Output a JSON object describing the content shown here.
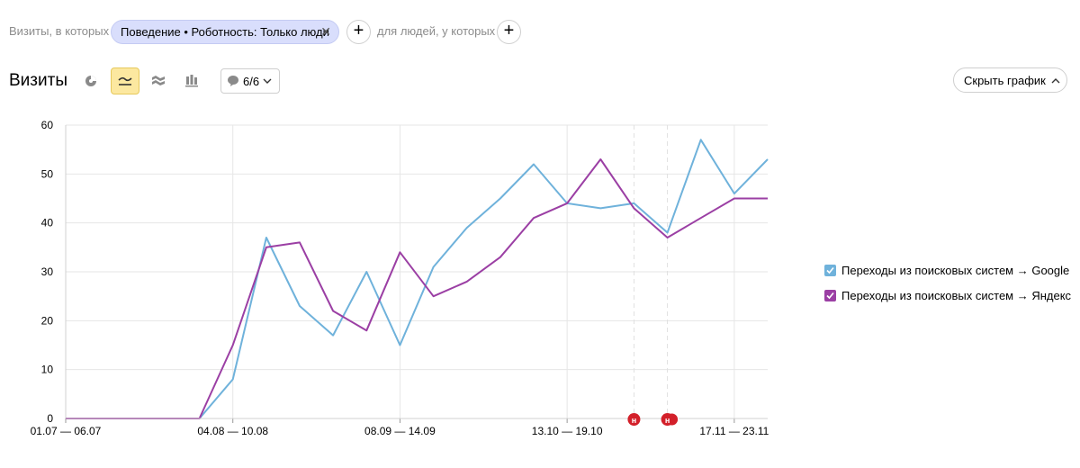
{
  "filter": {
    "prefix_label": "Визиты, в которых",
    "chip_label": "Поведение • Роботность: Только люди",
    "middle_label": "для людей, у которых",
    "add_glyph": "+"
  },
  "header": {
    "title": "Визиты",
    "notes_count": "6/6",
    "hide_chart_label": "Скрыть график"
  },
  "chart_data": {
    "type": "line",
    "ylim": [
      0,
      60
    ],
    "yticks": [
      "0",
      "10",
      "20",
      "30",
      "40",
      "50",
      "60"
    ],
    "x_tick_labels": [
      {
        "index": 0,
        "label": "01.07 — 06.07"
      },
      {
        "index": 5,
        "label": "04.08 — 10.08"
      },
      {
        "index": 10,
        "label": "08.09 — 14.09"
      },
      {
        "index": 15,
        "label": "13.10 — 19.10"
      },
      {
        "index": 20,
        "label": "17.11 — 23.11"
      }
    ],
    "n_points": 22,
    "series": [
      {
        "name": "Переходы из поисковых систем → Google",
        "color": "#6fb2db",
        "values": [
          0,
          0,
          0,
          0,
          0,
          8,
          37,
          23,
          17,
          30,
          15,
          31,
          39,
          45,
          52,
          44,
          43,
          44,
          38,
          57,
          46,
          53
        ]
      },
      {
        "name": "Переходы из поисковых систем → Яндекс",
        "color": "#9b3fa4",
        "values": [
          0,
          0,
          0,
          0,
          0,
          15,
          35,
          36,
          22,
          18,
          34,
          25,
          28,
          33,
          41,
          44,
          53,
          43,
          37,
          41,
          45,
          45
        ]
      }
    ],
    "annotation_markers": [
      {
        "index": 17,
        "glyph": "н"
      },
      {
        "index": 18,
        "glyph": "н"
      }
    ],
    "grid": true
  },
  "colors": {
    "accent_active": "#fce8a0",
    "marker": "#d3202a"
  }
}
